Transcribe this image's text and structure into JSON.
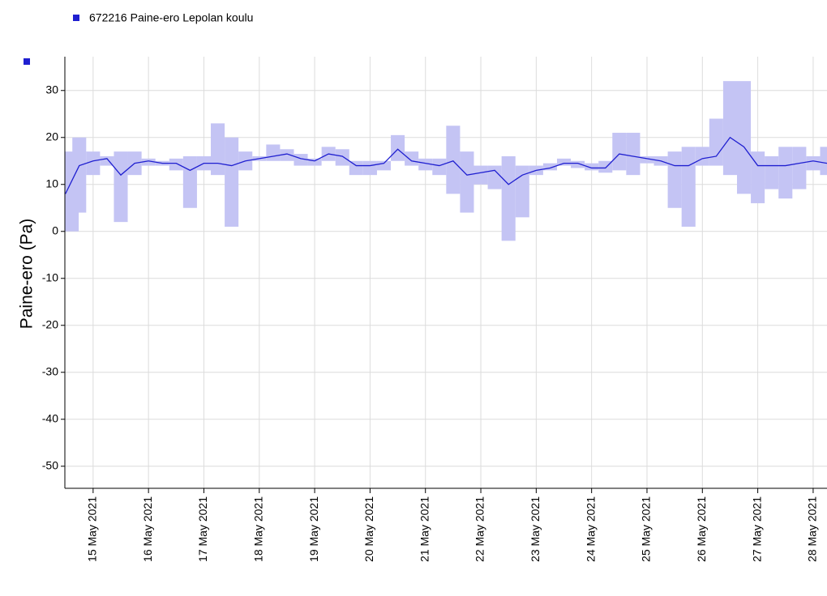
{
  "chart_data": {
    "type": "line",
    "legend": "672216  Paine-ero Lepolan koulu",
    "y_label": "Paine-ero (Pa)",
    "xlim": [
      14.49,
      28.25
    ],
    "ylim": [
      -54.7,
      37.2
    ],
    "yticks": [
      30,
      20,
      10,
      0,
      -10,
      -20,
      -30,
      -40,
      -50
    ],
    "xticks": [
      {
        "value": 15,
        "label": "15 May 2021"
      },
      {
        "value": 16,
        "label": "16 May 2021"
      },
      {
        "value": 17,
        "label": "17 May 2021"
      },
      {
        "value": 18,
        "label": "18 May 2021"
      },
      {
        "value": 19,
        "label": "19 May 2021"
      },
      {
        "value": 20,
        "label": "20 May 2021"
      },
      {
        "value": 21,
        "label": "21 May 2021"
      },
      {
        "value": 22,
        "label": "22 May 2021"
      },
      {
        "value": 23,
        "label": "23 May 2021"
      },
      {
        "value": 24,
        "label": "24 May 2021"
      },
      {
        "value": 25,
        "label": "25 May 2021"
      },
      {
        "value": 26,
        "label": "26 May 2021"
      },
      {
        "value": 27,
        "label": "27 May 2021"
      },
      {
        "value": 28,
        "label": "28 May 2021"
      }
    ],
    "grid": true,
    "x": [
      14.5,
      14.75,
      15,
      15.25,
      15.5,
      15.75,
      16,
      16.25,
      16.5,
      16.75,
      17,
      17.25,
      17.5,
      17.75,
      18,
      18.25,
      18.5,
      18.75,
      19,
      19.25,
      19.5,
      19.75,
      20,
      20.25,
      20.5,
      20.75,
      21,
      21.25,
      21.5,
      21.75,
      22,
      22.25,
      22.5,
      22.75,
      23,
      23.25,
      23.5,
      23.75,
      24,
      24.25,
      24.5,
      24.75,
      25,
      25.25,
      25.5,
      25.75,
      26,
      26.25,
      26.5,
      26.75,
      27,
      27.25,
      27.5,
      27.75,
      28,
      28.25
    ],
    "series": [
      {
        "name": "672216  Paine-ero Lepolan koulu",
        "color": "#1f1fd0",
        "band_color": "#c4c4f4",
        "values": [
          8,
          14,
          15,
          15.5,
          12,
          14.5,
          15,
          14.5,
          14.5,
          13,
          14.5,
          14.5,
          14,
          15,
          15.5,
          16,
          16.5,
          15.5,
          15,
          16.5,
          16,
          14,
          14,
          14.5,
          17.5,
          15,
          14.5,
          14,
          15,
          12,
          12.5,
          13,
          10,
          12,
          13,
          13.5,
          14.5,
          14.5,
          13.5,
          13.5,
          16.5,
          16,
          15.5,
          15,
          14,
          14,
          15.5,
          16,
          20,
          18,
          14,
          14,
          14,
          14.5,
          15,
          14.5
        ],
        "low": [
          0,
          4,
          12,
          14,
          2,
          12,
          14,
          14,
          13,
          5,
          13,
          12,
          1,
          13,
          15,
          15,
          15,
          14,
          14,
          15,
          14,
          12,
          12,
          13,
          15,
          14,
          13,
          12,
          8,
          4,
          10,
          9,
          -2,
          3,
          12,
          13,
          14,
          13.5,
          13,
          12.5,
          13,
          12,
          14.5,
          14,
          5,
          1,
          14,
          14,
          12,
          8,
          6,
          9,
          7,
          9,
          13,
          12
        ],
        "high": [
          17,
          20,
          17,
          16,
          17,
          17,
          15.5,
          15,
          15.5,
          16,
          16,
          23,
          20,
          17,
          16,
          18.5,
          17.5,
          16.5,
          15.5,
          18,
          17.5,
          15,
          15,
          15,
          20.5,
          17,
          15.5,
          15.5,
          22.5,
          17,
          14,
          14,
          16,
          14,
          14,
          14.5,
          15.5,
          15,
          14.5,
          15,
          21,
          21,
          16,
          16,
          17,
          18,
          18,
          24,
          32,
          32,
          17,
          16,
          18,
          18,
          16,
          18
        ]
      }
    ]
  }
}
